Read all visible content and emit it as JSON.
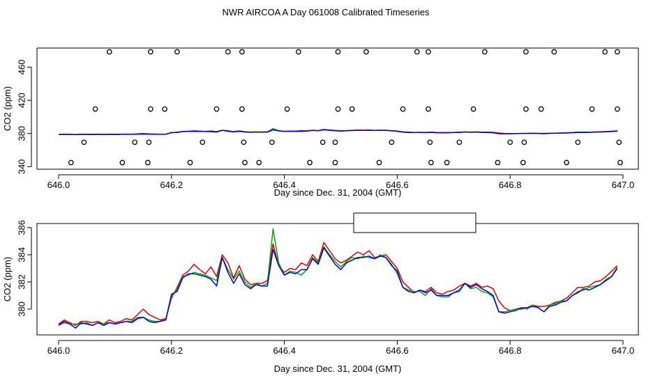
{
  "page": {
    "title": "NWR AIRCOA A  Day 061008  Calibrated Timeseries"
  },
  "colors": {
    "red": "#dd0000",
    "green": "#00aa00",
    "blue": "#0000dd",
    "axis": "#000000"
  },
  "chart_data": [
    {
      "id": "top",
      "type": "scatter",
      "title": "",
      "xlabel": "Day since Dec. 31, 2004 (GMT)",
      "ylabel": "CO2 (ppm)",
      "xlim": [
        646.0,
        647.0
      ],
      "ylim": [
        337,
        483
      ],
      "xticks": [
        646.0,
        646.2,
        646.4,
        646.6,
        646.8,
        647.0
      ],
      "xtick_labels": [
        "646.0",
        "646.2",
        "646.4",
        "646.6",
        "646.8",
        "647.0"
      ],
      "yticks": [
        340,
        380,
        420,
        460
      ],
      "ytick_labels": [
        "340",
        "380",
        "420",
        "460"
      ],
      "grid": false,
      "markers": {
        "style": "open-circle",
        "levels": [
          {
            "y": 478.5,
            "x": [
              646.09,
              646.163,
              646.21,
              646.3,
              646.325,
              646.425,
              646.495,
              646.545,
              646.635,
              646.655,
              646.755,
              646.828,
              646.878,
              646.968,
              646.99
            ]
          },
          {
            "y": 409.5,
            "x": [
              646.065,
              646.163,
              646.188,
              646.28,
              646.325,
              646.405,
              646.495,
              646.52,
              646.61,
              646.655,
              646.735,
              646.828,
              646.855,
              646.945,
              646.99
            ]
          },
          {
            "y": 369.5,
            "x": [
              646.045,
              646.135,
              646.16,
              646.255,
              646.328,
              646.378,
              646.468,
              646.49,
              646.59,
              646.658,
              646.71,
              646.8,
              646.825,
              646.92,
              646.993
            ]
          },
          {
            "y": 345.0,
            "x": [
              646.022,
              646.113,
              646.158,
              646.233,
              646.33,
              646.355,
              646.445,
              646.49,
              646.568,
              646.66,
              646.688,
              646.778,
              646.823,
              646.9,
              646.995
            ]
          }
        ]
      },
      "series_source": "bottom"
    },
    {
      "id": "bottom",
      "type": "line",
      "title": "",
      "xlabel": "Day since Dec. 31, 2004 (GMT)",
      "ylabel": "CO2 (ppm)",
      "xlim": [
        646.0,
        647.0
      ],
      "ylim": [
        378.1,
        386.3
      ],
      "xticks": [
        646.0,
        646.2,
        646.4,
        646.6,
        646.8,
        647.0
      ],
      "xtick_labels": [
        "646.0",
        "646.2",
        "646.4",
        "646.6",
        "646.8",
        "647.0"
      ],
      "yticks": [
        380,
        382,
        384,
        386
      ],
      "ytick_labels": [
        "380",
        "382",
        "384",
        "386"
      ],
      "grid": false,
      "legend": {
        "placement": "top-center",
        "entries": []
      },
      "series": [
        {
          "name": "red",
          "color": "red",
          "x": [
            646.0,
            646.01,
            646.02,
            646.03,
            646.04,
            646.05,
            646.06,
            646.07,
            646.08,
            646.09,
            646.1,
            646.11,
            646.12,
            646.13,
            646.14,
            646.15,
            646.16,
            646.17,
            646.18,
            646.19,
            646.2,
            646.21,
            646.22,
            646.23,
            646.24,
            646.25,
            646.26,
            646.27,
            646.28,
            646.29,
            646.3,
            646.31,
            646.32,
            646.33,
            646.34,
            646.35,
            646.36,
            646.37,
            646.38,
            646.39,
            646.4,
            646.41,
            646.42,
            646.43,
            646.44,
            646.45,
            646.46,
            646.47,
            646.48,
            646.49,
            646.5,
            646.51,
            646.52,
            646.53,
            646.54,
            646.55,
            646.56,
            646.57,
            646.58,
            646.59,
            646.6,
            646.61,
            646.62,
            646.63,
            646.64,
            646.65,
            646.66,
            646.67,
            646.68,
            646.69,
            646.7,
            646.71,
            646.72,
            646.73,
            646.74,
            646.75,
            646.76,
            646.77,
            646.78,
            646.79,
            646.8,
            646.81,
            646.82,
            646.83,
            646.84,
            646.85,
            646.86,
            646.87,
            646.88,
            646.89,
            646.9,
            646.91,
            646.92,
            646.93,
            646.94,
            646.95,
            646.96,
            646.97,
            646.98,
            646.99
          ],
          "y": [
            378.9,
            379.2,
            379.0,
            378.8,
            379.1,
            379.1,
            379.0,
            379.1,
            378.9,
            379.2,
            379.0,
            379.1,
            379.3,
            379.2,
            379.6,
            380.0,
            379.6,
            379.4,
            379.2,
            379.3,
            380.8,
            381.6,
            382.5,
            382.8,
            383.3,
            382.9,
            382.6,
            383.1,
            382.4,
            384.0,
            383.4,
            382.3,
            383.2,
            382.2,
            381.8,
            381.9,
            381.9,
            382.1,
            384.8,
            383.2,
            382.7,
            383.0,
            382.9,
            383.4,
            383.2,
            384.0,
            383.5,
            384.9,
            384.3,
            383.7,
            383.4,
            383.6,
            383.9,
            384.2,
            384.0,
            384.3,
            383.8,
            383.9,
            384.0,
            383.5,
            383.0,
            382.0,
            381.6,
            381.2,
            381.4,
            381.3,
            381.6,
            381.2,
            381.1,
            381.3,
            381.4,
            381.7,
            381.9,
            381.7,
            381.9,
            381.6,
            381.7,
            381.5,
            380.6,
            380.1,
            379.9,
            380.0,
            380.0,
            380.1,
            380.3,
            380.2,
            380.2,
            380.3,
            380.5,
            380.6,
            380.8,
            381.2,
            381.6,
            381.6,
            381.7,
            382.0,
            382.1,
            382.4,
            382.8,
            383.2
          ]
        },
        {
          "name": "green",
          "color": "green",
          "x": [
            646.0,
            646.01,
            646.02,
            646.03,
            646.04,
            646.05,
            646.06,
            646.07,
            646.08,
            646.09,
            646.1,
            646.11,
            646.12,
            646.13,
            646.14,
            646.15,
            646.16,
            646.17,
            646.18,
            646.19,
            646.2,
            646.21,
            646.22,
            646.23,
            646.24,
            646.25,
            646.26,
            646.27,
            646.28,
            646.29,
            646.3,
            646.31,
            646.32,
            646.33,
            646.34,
            646.35,
            646.36,
            646.37,
            646.38,
            646.39,
            646.4,
            646.41,
            646.42,
            646.43,
            646.44,
            646.45,
            646.46,
            646.47,
            646.48,
            646.49,
            646.5,
            646.51,
            646.52,
            646.53,
            646.54,
            646.55,
            646.56,
            646.57,
            646.58,
            646.59,
            646.6,
            646.61,
            646.62,
            646.63,
            646.64,
            646.65,
            646.66,
            646.67,
            646.68,
            646.69,
            646.7,
            646.71,
            646.72,
            646.73,
            646.74,
            646.75,
            646.76,
            646.77,
            646.78,
            646.79,
            646.8,
            646.81,
            646.82,
            646.83,
            646.84,
            646.85,
            646.86,
            646.87,
            646.88,
            646.89,
            646.9,
            646.91,
            646.92,
            646.93,
            646.94,
            646.95,
            646.96,
            646.97,
            646.98,
            646.99
          ],
          "y": [
            378.8,
            379.0,
            378.9,
            378.9,
            378.9,
            379.0,
            378.8,
            379.0,
            378.9,
            379.0,
            378.9,
            379.0,
            379.1,
            379.1,
            379.4,
            379.4,
            379.2,
            379.1,
            379.1,
            379.2,
            381.0,
            381.4,
            382.4,
            382.5,
            382.7,
            382.6,
            382.5,
            382.3,
            382.1,
            383.8,
            382.9,
            382.2,
            382.8,
            382.0,
            381.6,
            381.9,
            381.7,
            381.9,
            385.9,
            383.4,
            382.5,
            382.8,
            382.7,
            382.5,
            382.9,
            383.8,
            383.4,
            384.6,
            384.0,
            383.5,
            383.1,
            383.5,
            383.8,
            383.7,
            383.9,
            383.8,
            383.7,
            384.0,
            383.8,
            383.3,
            382.6,
            381.6,
            381.4,
            381.3,
            381.3,
            381.0,
            381.5,
            381.0,
            380.9,
            380.9,
            381.2,
            381.3,
            381.9,
            381.5,
            381.6,
            381.3,
            381.2,
            380.9,
            379.8,
            379.8,
            379.9,
            380.0,
            380.1,
            380.0,
            380.3,
            380.1,
            379.8,
            380.3,
            380.4,
            380.6,
            380.6,
            381.0,
            381.3,
            381.4,
            381.6,
            381.7,
            381.8,
            382.2,
            382.4,
            383.1
          ]
        },
        {
          "name": "blue",
          "color": "blue",
          "x": [
            646.0,
            646.01,
            646.02,
            646.03,
            646.04,
            646.05,
            646.06,
            646.07,
            646.08,
            646.09,
            646.1,
            646.11,
            646.12,
            646.13,
            646.14,
            646.15,
            646.16,
            646.17,
            646.18,
            646.19,
            646.2,
            646.21,
            646.22,
            646.23,
            646.24,
            646.25,
            646.26,
            646.27,
            646.28,
            646.29,
            646.3,
            646.31,
            646.32,
            646.33,
            646.34,
            646.35,
            646.36,
            646.37,
            646.38,
            646.39,
            646.4,
            646.41,
            646.42,
            646.43,
            646.44,
            646.45,
            646.46,
            646.47,
            646.48,
            646.49,
            646.5,
            646.51,
            646.52,
            646.53,
            646.54,
            646.55,
            646.56,
            646.57,
            646.58,
            646.59,
            646.6,
            646.61,
            646.62,
            646.63,
            646.64,
            646.65,
            646.66,
            646.67,
            646.68,
            646.69,
            646.7,
            646.71,
            646.72,
            646.73,
            646.74,
            646.75,
            646.76,
            646.77,
            646.78,
            646.79,
            646.8,
            646.81,
            646.82,
            646.83,
            646.84,
            646.85,
            646.86,
            646.87,
            646.88,
            646.89,
            646.9,
            646.91,
            646.92,
            646.93,
            646.94,
            646.95,
            646.96,
            646.97,
            646.98,
            646.99
          ],
          "y": [
            378.8,
            379.1,
            378.9,
            378.6,
            379.0,
            378.9,
            378.8,
            379.0,
            378.8,
            379.0,
            378.9,
            379.0,
            379.1,
            379.0,
            379.3,
            379.4,
            379.1,
            379.0,
            379.1,
            379.2,
            381.1,
            381.3,
            382.3,
            382.6,
            382.6,
            382.5,
            382.4,
            382.2,
            381.7,
            383.8,
            382.7,
            381.9,
            382.6,
            381.8,
            381.5,
            381.8,
            381.7,
            381.7,
            384.4,
            383.2,
            382.5,
            382.7,
            382.6,
            382.9,
            382.9,
            383.7,
            383.3,
            384.5,
            383.9,
            383.3,
            382.9,
            383.4,
            383.6,
            383.8,
            383.8,
            383.9,
            383.7,
            383.9,
            383.8,
            383.2,
            382.8,
            381.6,
            381.3,
            381.2,
            381.4,
            381.2,
            381.4,
            381.0,
            381.0,
            381.0,
            381.2,
            381.4,
            381.9,
            381.6,
            381.8,
            381.5,
            381.3,
            381.0,
            379.8,
            379.7,
            379.8,
            379.9,
            380.1,
            380.1,
            380.2,
            380.1,
            379.8,
            380.2,
            380.3,
            380.5,
            380.6,
            381.0,
            381.2,
            381.5,
            381.4,
            381.6,
            381.8,
            382.1,
            382.4,
            383.0
          ]
        }
      ]
    }
  ]
}
